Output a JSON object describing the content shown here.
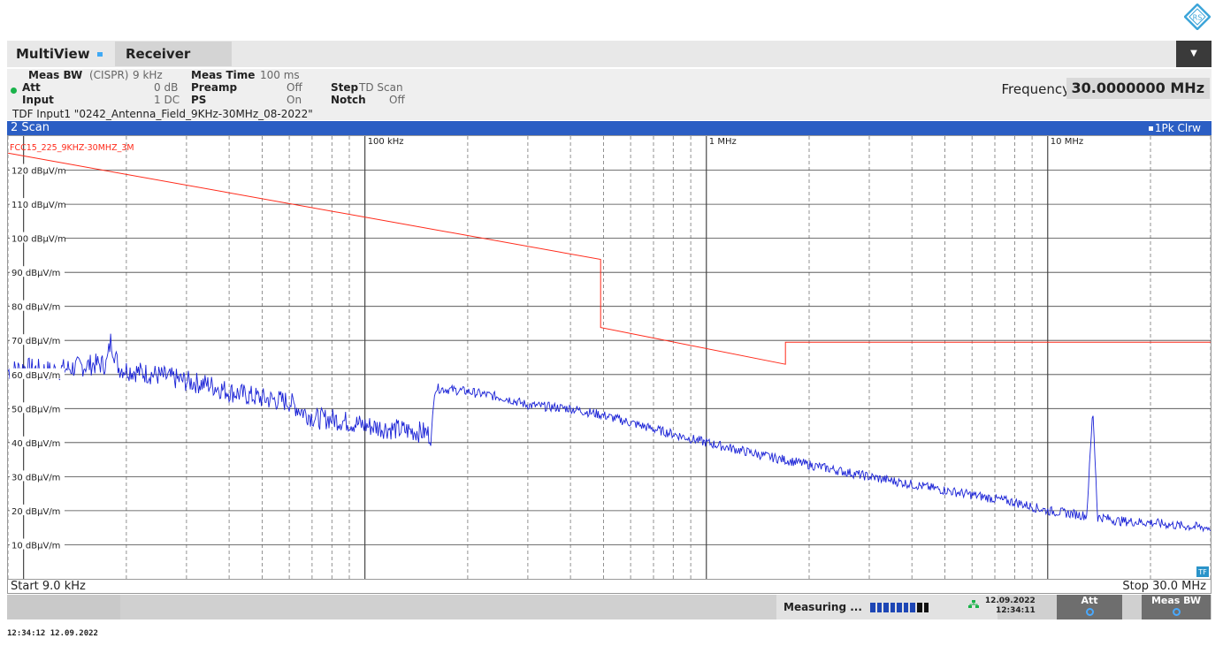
{
  "app": {
    "tab_multiview": "MultiView",
    "tab_receiver": "Receiver",
    "menu_icon": "dropdown-arrow-icon",
    "logo_text": "RS"
  },
  "settings": {
    "meas_bw_label": "Meas BW",
    "meas_bw_mode": "(CISPR)",
    "meas_bw_value": "9 kHz",
    "meas_time_label": "Meas Time",
    "meas_time_value": "100 ms",
    "att_label": "Att",
    "att_value": "0 dB",
    "preamp_label": "Preamp",
    "preamp_value": "Off",
    "step_label": "Step",
    "step_value": "TD Scan",
    "input_label": "Input",
    "input_value": "1 DC",
    "ps_label": "PS",
    "ps_value": "On",
    "notch_label": "Notch",
    "notch_value": "Off",
    "tdf_line": "TDF Input1 \"0242_Antenna_Field_9KHz-30MHz_08-2022\"",
    "frequency_label": "Frequency",
    "frequency_value": "30.0000000 MHz"
  },
  "window": {
    "title": "2 Scan",
    "trace_info": "1Pk Clrw",
    "start_label": "Start 9.0 kHz",
    "stop_label": "Stop 30.0 MHz",
    "tf_badge": "TF"
  },
  "status": {
    "measuring": "Measuring ...",
    "date": "12.09.2022",
    "time": "12:34:11",
    "att_button": "Att",
    "meas_bw_button": "Meas BW"
  },
  "timestamp": "12:34:12  12.09.2022",
  "colors": {
    "limit_line": "#ff2a1a",
    "trace": "#1a22d6",
    "header_blue": "#2b5ec4"
  },
  "chart_data": {
    "type": "line",
    "x_scale": "log",
    "xlim": [
      9000,
      30000000
    ],
    "ylim": [
      0,
      130
    ],
    "grid": true,
    "x_tick_labels": [
      {
        "x": 100000,
        "label": "100 kHz"
      },
      {
        "x": 1000000,
        "label": "1 MHz"
      },
      {
        "x": 10000000,
        "label": "10 MHz"
      }
    ],
    "y_tick_labels": [
      {
        "y": 120,
        "label": "120 dBµV/m"
      },
      {
        "y": 110,
        "label": "110 dBµV/m"
      },
      {
        "y": 100,
        "label": "100 dBµV/m"
      },
      {
        "y": 90,
        "label": "90 dBµV/m"
      },
      {
        "y": 80,
        "label": "80 dBµV/m"
      },
      {
        "y": 70,
        "label": "70 dBµV/m"
      },
      {
        "y": 60,
        "label": "60 dBµV/m"
      },
      {
        "y": 50,
        "label": "50 dBµV/m"
      },
      {
        "y": 40,
        "label": "40 dBµV/m"
      },
      {
        "y": 30,
        "label": "30 dBµV/m"
      },
      {
        "y": 20,
        "label": "20 dBµV/m"
      },
      {
        "y": 10,
        "label": "10 dBµV/m"
      }
    ],
    "series": [
      {
        "name": "FCC15_225_9KHZ-30MHZ_3M",
        "color": "#ff2a1a",
        "x": [
          9000,
          490000,
          490000,
          1705000,
          1705000,
          30000000
        ],
        "y": [
          125,
          93.8,
          73.8,
          63.0,
          69.5,
          69.5
        ]
      },
      {
        "name": "1Pk Clrw",
        "color": "#1a22d6",
        "x": [
          9000,
          10000,
          12000,
          14000,
          16000,
          17500,
          18000,
          19000,
          21000,
          24000,
          27000,
          30000,
          35000,
          40000,
          50000,
          60000,
          66000,
          72000,
          80000,
          90000,
          100000,
          120000,
          150000,
          157000,
          160000,
          180000,
          200000,
          260000,
          300000,
          400000,
          500000,
          700000,
          1000000,
          1500000,
          2000000,
          3000000,
          5000000,
          8000000,
          10000000,
          12000000,
          13000000,
          13560000,
          14000000,
          14500000,
          16000000,
          20000000,
          25000000,
          30000000
        ],
        "y": [
          61,
          62,
          61,
          62,
          63,
          63,
          70,
          62,
          61,
          60,
          59,
          58,
          57,
          55,
          53,
          52,
          49,
          47,
          47,
          46,
          45,
          44,
          43,
          42,
          56,
          55.5,
          55,
          53,
          51,
          50,
          48,
          44,
          40,
          36,
          33.5,
          30,
          26,
          22.5,
          20,
          19,
          18.5,
          50,
          18,
          18,
          17,
          16.5,
          15.5,
          15
        ]
      }
    ]
  }
}
